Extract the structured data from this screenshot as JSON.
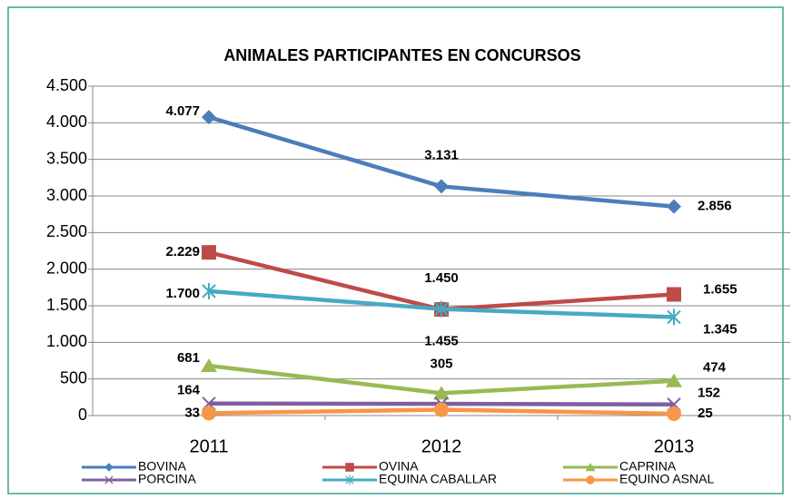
{
  "chart_data": {
    "type": "line",
    "title": "ANIMALES PARTICIPANTES EN CONCURSOS",
    "categories": [
      "2011",
      "2012",
      "2013"
    ],
    "series": [
      {
        "name": "BOVINA",
        "color": "#4a7ebb",
        "marker": "diamond",
        "values": [
          4077,
          3131,
          2856
        ],
        "value_labels": [
          "4.077",
          "3.131",
          "2.856"
        ]
      },
      {
        "name": "OVINA",
        "color": "#be4b48",
        "marker": "square",
        "values": [
          2229,
          1450,
          1655
        ],
        "value_labels": [
          "2.229",
          "1.450",
          "1.655"
        ]
      },
      {
        "name": "CAPRINA",
        "color": "#98b954",
        "marker": "triangle",
        "values": [
          681,
          305,
          474
        ],
        "value_labels": [
          "681",
          "305",
          "474"
        ]
      },
      {
        "name": "PORCINA",
        "color": "#7d60a0",
        "marker": "x",
        "values": [
          164,
          160,
          152
        ],
        "value_labels": [
          "164",
          null,
          "152"
        ]
      },
      {
        "name": "EQUINA CABALLAR",
        "color": "#46aac5",
        "marker": "star",
        "values": [
          1700,
          1455,
          1345
        ],
        "value_labels": [
          "1.700",
          "1.455",
          "1.345"
        ]
      },
      {
        "name": "EQUINO ASNAL",
        "color": "#f79646",
        "marker": "circle",
        "values": [
          33,
          80,
          25
        ],
        "value_labels": [
          "33",
          null,
          "25"
        ]
      }
    ],
    "ylim": [
      0,
      4500
    ],
    "yticks": [
      0,
      500,
      {
        "value": 1000,
        "label": "1.000"
      },
      {
        "value": 1500,
        "label": "1.500"
      },
      {
        "value": 2000,
        "label": "2.000"
      },
      {
        "value": 2500,
        "label": "2.500"
      },
      {
        "value": 3000,
        "label": "3.000"
      },
      {
        "value": 3500,
        "label": "3.500"
      },
      {
        "value": 4000,
        "label": "4.000"
      },
      {
        "value": 4500,
        "label": "4.500"
      }
    ],
    "grid": true,
    "legend": "bottom"
  }
}
